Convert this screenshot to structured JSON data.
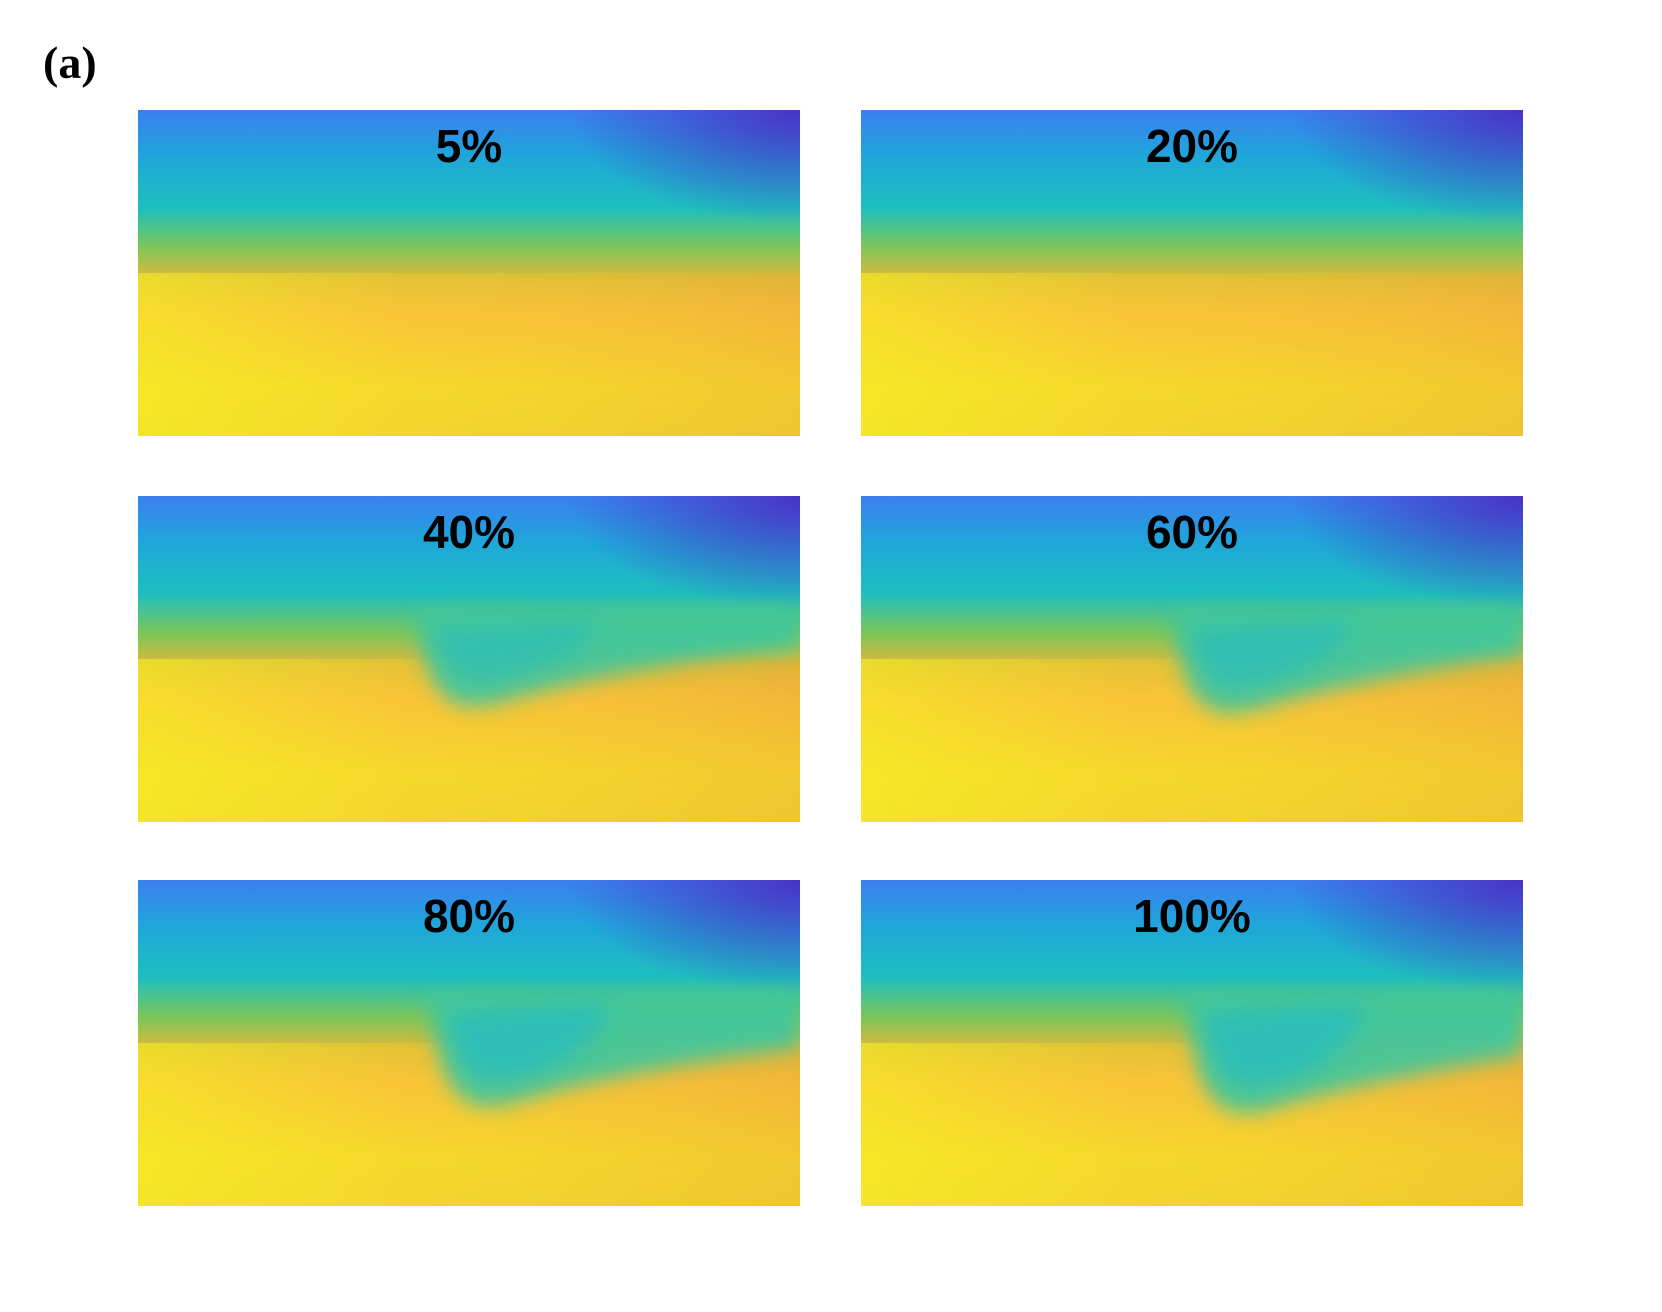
{
  "figure_label": "(a)",
  "panels": [
    {
      "label": "5%"
    },
    {
      "label": "20%"
    },
    {
      "label": "40%"
    },
    {
      "label": "60%"
    },
    {
      "label": "80%"
    },
    {
      "label": "100%"
    }
  ]
}
